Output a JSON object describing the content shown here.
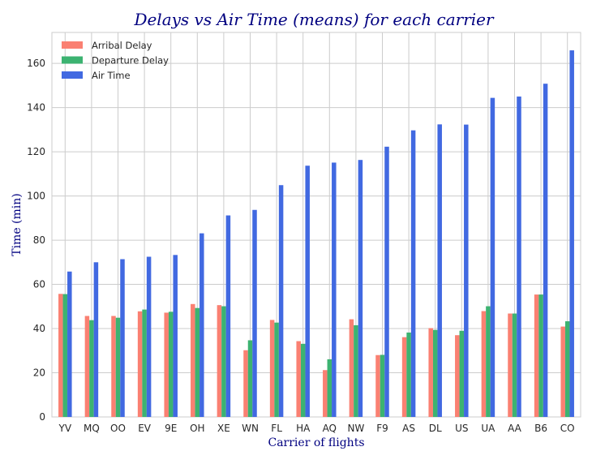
{
  "chart_data": {
    "type": "bar",
    "title": "Delays vs Air Time (means) for each carrier",
    "xlabel": "Carrier of flights",
    "ylabel": "Time (min)",
    "ylim": [
      0,
      174
    ],
    "yticks": [
      0,
      20,
      40,
      60,
      80,
      100,
      120,
      140,
      160
    ],
    "grid": true,
    "legend_position": "top-left",
    "categories": [
      "YV",
      "MQ",
      "OO",
      "EV",
      "9E",
      "OH",
      "XE",
      "WN",
      "FL",
      "HA",
      "AQ",
      "NW",
      "F9",
      "AS",
      "DL",
      "US",
      "UA",
      "AA",
      "B6",
      "CO"
    ],
    "series": [
      {
        "name": "Arribal Delay",
        "color": "#fa8072",
        "values": [
          55.7,
          45.7,
          45.7,
          47.8,
          47.2,
          51.1,
          50.6,
          30.2,
          43.9,
          34.3,
          21.2,
          44.2,
          28.0,
          36.1,
          40.2,
          37.0,
          47.9,
          46.8,
          55.4,
          40.9
        ]
      },
      {
        "name": "Departure Delay",
        "color": "#3cb371",
        "values": [
          55.6,
          43.8,
          44.9,
          48.6,
          47.6,
          49.3,
          50.1,
          34.7,
          42.7,
          33.1,
          26.1,
          41.5,
          28.1,
          38.2,
          39.4,
          39.0,
          50.1,
          46.8,
          55.4,
          43.3
        ]
      },
      {
        "name": "Air Time",
        "color": "#4169e1",
        "values": [
          65.8,
          70.0,
          71.4,
          72.5,
          73.3,
          83.1,
          91.2,
          93.7,
          104.9,
          113.7,
          115.1,
          116.3,
          122.3,
          129.7,
          132.4,
          132.3,
          144.4,
          145.0,
          150.8,
          165.9
        ]
      }
    ]
  }
}
